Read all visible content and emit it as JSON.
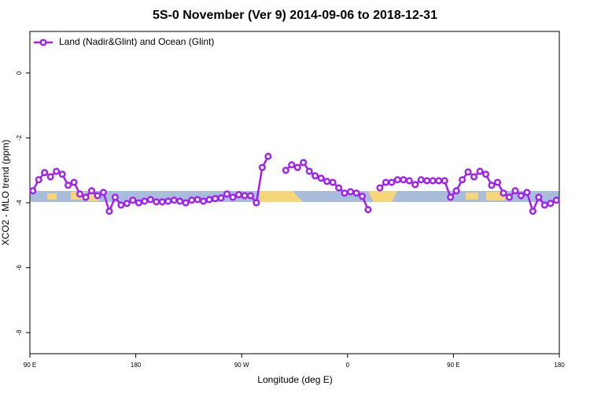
{
  "chart_data": {
    "type": "line",
    "title": "5S-0 November (Ver 9)   2014-09-06 to 2018-12-31",
    "x_label": "Longitude (deg E)",
    "y_label": "XCO2 - MLO trend (ppm)",
    "x": [
      92.5,
      97.5,
      102.5,
      107.5,
      112.5,
      117.5,
      122.5,
      127.5,
      132.5,
      137.5,
      142.5,
      147.5,
      152.5,
      157.5,
      162.5,
      167.5,
      172.5,
      177.5,
      182.5,
      187.5,
      192.5,
      197.5,
      202.5,
      207.5,
      212.5,
      217.5,
      222.5,
      227.5,
      232.5,
      237.5,
      242.5,
      247.5,
      252.5,
      257.5,
      262.5,
      267.5,
      272.5,
      277.5,
      282.5,
      287.5,
      292.5,
      297.5,
      302.5,
      307.5,
      312.5,
      317.5,
      322.5,
      327.5,
      332.5,
      337.5,
      342.5,
      347.5,
      352.5,
      357.5,
      362.5,
      367.5,
      372.5,
      377.5,
      382.5,
      387.5,
      392.5,
      397.5,
      402.5,
      407.5,
      412.5,
      417.5,
      422.5,
      427.5,
      432.5,
      437.5,
      442.5,
      447.5,
      452.5,
      457.5,
      462.5,
      467.5,
      472.5,
      477.5,
      482.5,
      487.5,
      492.5,
      497.5,
      502.5,
      507.5,
      512.5,
      517.5,
      522.5,
      527.5,
      532.5,
      537.5
    ],
    "series": [
      {
        "name": "Land (Nadir&Glint) and Ocean (Glint)",
        "color": "#a020f0",
        "values": [
          -3.63,
          -3.29,
          -3.07,
          -3.2,
          -3.03,
          -3.12,
          -3.46,
          -3.37,
          -3.73,
          -3.83,
          -3.63,
          -3.78,
          -3.68,
          -4.26,
          -3.83,
          -4.07,
          -4.02,
          -3.92,
          -4.0,
          -3.95,
          -3.9,
          -3.97,
          -3.97,
          -3.95,
          -3.92,
          -3.95,
          -4.0,
          -3.92,
          -3.9,
          -3.95,
          -3.9,
          -3.87,
          -3.85,
          -3.73,
          -3.83,
          -3.75,
          -3.78,
          -3.78,
          -4.0,
          -2.91,
          -2.57,
          null,
          null,
          -3.0,
          -2.83,
          -2.91,
          -2.76,
          -3.03,
          -3.17,
          -3.24,
          -3.34,
          -3.37,
          -3.54,
          -3.7,
          -3.66,
          -3.7,
          -3.8,
          -4.21,
          null,
          -3.54,
          -3.37,
          -3.37,
          -3.29,
          -3.29,
          -3.32,
          -3.44,
          -3.29,
          -3.32,
          -3.32,
          -3.32,
          -3.32,
          -3.83,
          -3.63,
          -3.29,
          -3.05,
          -3.2,
          -3.03,
          -3.12,
          -3.46,
          -3.37,
          -3.7,
          -3.83,
          -3.63,
          -3.78,
          -3.68,
          -4.26,
          -3.83,
          -4.07,
          -4.02,
          -3.92
        ]
      }
    ],
    "xlim": [
      90,
      540
    ],
    "xticks": [
      {
        "value": 90,
        "label": "90 E"
      },
      180,
      {
        "value": 270,
        "label": "90 W"
      },
      {
        "value": 360,
        "label": "0"
      },
      {
        "value": 450,
        "label": "90 E"
      },
      {
        "value": 540,
        "label": "180"
      }
    ],
    "ylim": [
      -8.65,
      1.28
    ],
    "yticks": [
      0,
      -2,
      -4,
      -6,
      -8
    ],
    "legend": "top-left"
  }
}
